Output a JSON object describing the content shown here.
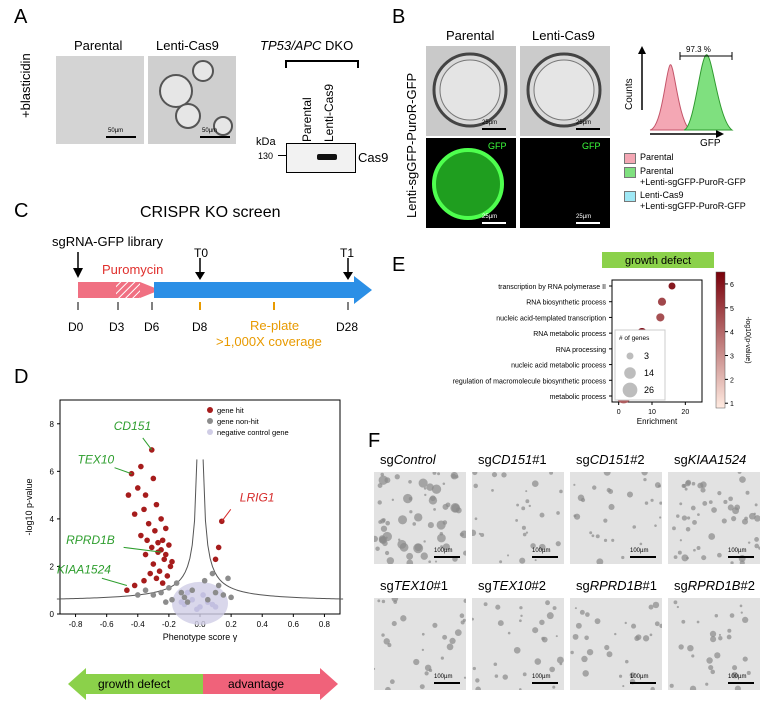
{
  "panels": {
    "a": "A",
    "b": "B",
    "c": "C",
    "d": "D",
    "e": "E",
    "f": "F"
  },
  "a": {
    "col1": "Parental",
    "col2": "Lenti-Cas9",
    "rowlabel": "+blasticidin",
    "scalebar1": "50µm",
    "scalebar2": "50µm",
    "dko_prefix": "TP53/APC",
    "dko_suffix": " DKO",
    "wb_lane1": "Parental",
    "wb_lane2": "Lenti-Cas9",
    "kda": "kDa",
    "marker": "130",
    "band": "Cas9"
  },
  "b": {
    "col1": "Parental",
    "col2": "Lenti-Cas9",
    "rowlabel": "Lenti-sgGFP-PuroR-GFP",
    "gfp1": "GFP",
    "gfp2": "GFP",
    "sb_top1": "25µm",
    "sb_top2": "25µm",
    "sb_bot1": "25µm",
    "sb_bot2": "25µm",
    "percent": "97.3 %",
    "ylabel": "Counts",
    "xlabel": "GFP",
    "legend": [
      {
        "color": "#f4a7b4",
        "line1": "Parental",
        "line2": ""
      },
      {
        "color": "#7fe07f",
        "line1": "Parental",
        "line2": "+Lenti-sgGFP-PuroR-GFP"
      },
      {
        "color": "#9fe8f5",
        "line1": "Lenti-Cas9",
        "line2": "+Lenti-sgGFP-PuroR-GFP"
      }
    ]
  },
  "c": {
    "title": "CRISPR KO screen",
    "library": "sgRNA-GFP library",
    "puromycin": "Puromycin",
    "t0": "T0",
    "t1": "T1",
    "replate1": "Re-plate",
    "replate2": ">1,000X coverage",
    "days": [
      "D0",
      "D3",
      "D6",
      "D8",
      "D28"
    ]
  },
  "d": {
    "xlabel": "Phenotype score γ",
    "ylabel": "-log10 p-value",
    "legend": [
      {
        "color": "#a61c1c",
        "label": "gene hit"
      },
      {
        "color": "#8c8c8c",
        "label": "gene non-hit"
      },
      {
        "color": "#d0cde6",
        "label": "negative control gene"
      }
    ],
    "genes": [
      {
        "name": "CD151",
        "color": "#2e9e2e"
      },
      {
        "name": "TEX10",
        "color": "#2e9e2e"
      },
      {
        "name": "RPRD1B",
        "color": "#2e9e2e"
      },
      {
        "name": "KIAA1524",
        "color": "#2e9e2e"
      },
      {
        "name": "LRIG1",
        "color": "#d62b2b"
      }
    ],
    "arrow_left": "growth defect",
    "arrow_right": "advantage"
  },
  "chart_data": [
    {
      "type": "scatter",
      "title": "",
      "xlabel": "Phenotype score γ",
      "ylabel": "-log10 p-value",
      "xlim": [
        -0.9,
        0.9
      ],
      "ylim": [
        0,
        9
      ],
      "xticks": [
        "-0.8",
        "-0.6",
        "-0.4",
        "-0.2",
        "0.0",
        "0.2",
        "0.4",
        "0.6",
        "0.8"
      ],
      "yticks": [
        "0",
        "2",
        "4",
        "6",
        "8"
      ],
      "series": [
        {
          "name": "gene hit",
          "points": [
            [
              -0.31,
              6.9
            ],
            [
              -0.44,
              5.9
            ],
            [
              -0.38,
              6.2
            ],
            [
              -0.3,
              5.7
            ],
            [
              -0.4,
              5.3
            ],
            [
              -0.46,
              5.0
            ],
            [
              -0.35,
              5.0
            ],
            [
              -0.28,
              4.6
            ],
            [
              -0.36,
              4.4
            ],
            [
              -0.42,
              4.2
            ],
            [
              -0.25,
              4.0
            ],
            [
              -0.33,
              3.8
            ],
            [
              -0.22,
              3.6
            ],
            [
              -0.29,
              3.5
            ],
            [
              -0.38,
              3.3
            ],
            [
              -0.24,
              3.1
            ],
            [
              -0.2,
              2.9
            ],
            [
              -0.31,
              2.8
            ],
            [
              -0.27,
              2.6
            ],
            [
              -0.35,
              2.5
            ],
            [
              -0.23,
              2.3
            ],
            [
              -0.3,
              2.1
            ],
            [
              -0.19,
              2.0
            ],
            [
              -0.26,
              1.8
            ],
            [
              -0.32,
              1.7
            ],
            [
              -0.21,
              1.6
            ],
            [
              -0.28,
              1.5
            ],
            [
              -0.36,
              1.4
            ],
            [
              -0.24,
              1.3
            ],
            [
              -0.42,
              1.2
            ],
            [
              -0.47,
              1.0
            ],
            [
              -0.22,
              2.5
            ],
            [
              -0.18,
              2.2
            ],
            [
              -0.25,
              2.7
            ],
            [
              -0.27,
              3.0
            ],
            [
              -0.34,
              3.1
            ],
            [
              0.14,
              3.9
            ],
            [
              0.12,
              2.8
            ],
            [
              0.1,
              2.3
            ]
          ]
        },
        {
          "name": "gene non-hit",
          "points": [
            [
              -0.15,
              1.3
            ],
            [
              -0.12,
              0.9
            ],
            [
              -0.1,
              0.7
            ],
            [
              -0.2,
              1.1
            ],
            [
              -0.25,
              0.9
            ],
            [
              -0.3,
              0.8
            ],
            [
              -0.18,
              0.6
            ],
            [
              -0.08,
              0.5
            ],
            [
              0.05,
              0.6
            ],
            [
              0.1,
              0.9
            ],
            [
              0.12,
              1.2
            ],
            [
              0.15,
              0.8
            ],
            [
              -0.05,
              1.0
            ],
            [
              0.03,
              1.4
            ],
            [
              0.08,
              1.7
            ],
            [
              -0.22,
              0.5
            ],
            [
              -0.35,
              1.0
            ],
            [
              -0.4,
              0.8
            ],
            [
              0.2,
              0.7
            ],
            [
              0.18,
              1.5
            ]
          ]
        },
        {
          "name": "negative control gene",
          "points": [
            [
              -0.1,
              0.4
            ],
            [
              0,
              0.3
            ],
            [
              0.05,
              0.5
            ],
            [
              -0.05,
              0.6
            ],
            [
              0.08,
              0.4
            ],
            [
              -0.12,
              0.5
            ],
            [
              0.02,
              0.8
            ],
            [
              -0.02,
              0.2
            ],
            [
              0.1,
              0.3
            ],
            [
              -0.08,
              0.9
            ]
          ]
        }
      ],
      "annotations": [
        {
          "text": "CD151",
          "x": -0.31,
          "y": 6.9
        },
        {
          "text": "TEX10",
          "x": -0.44,
          "y": 5.9
        },
        {
          "text": "RPRD1B",
          "x": -0.25,
          "y": 2.6
        },
        {
          "text": "KIAA1524",
          "x": -0.47,
          "y": 1.2
        },
        {
          "text": "LRIG1",
          "x": 0.14,
          "y": 3.9
        }
      ]
    },
    {
      "type": "scatter",
      "title": "growth defect",
      "xlabel": "Enrichment",
      "ylabel": "",
      "xlim": [
        -2,
        25
      ],
      "xticks": [
        "0",
        "10",
        "20"
      ],
      "categories": [
        "transcription by RNA polymerase II",
        "RNA biosynthetic process",
        "nucleic acid-templated transcription",
        "RNA metabolic process",
        "RNA processing",
        "nucleic acid metabolic process",
        "regulation of macromolecule biosynthetic process",
        "metabolic process"
      ],
      "series": [
        {
          "name": "",
          "points": [
            {
              "category": "transcription by RNA polymerase II",
              "x": 16,
              "genes": 3,
              "neglog10p": 5.5
            },
            {
              "category": "RNA biosynthetic process",
              "x": 13,
              "genes": 5,
              "neglog10p": 4.5
            },
            {
              "category": "nucleic acid-templated transcription",
              "x": 12.5,
              "genes": 5,
              "neglog10p": 4.3
            },
            {
              "category": "RNA metabolic process",
              "x": 7,
              "genes": 10,
              "neglog10p": 6.3
            },
            {
              "category": "RNA processing",
              "x": 7,
              "genes": 7,
              "neglog10p": 5.5
            },
            {
              "category": "nucleic acid metabolic process",
              "x": 6,
              "genes": 11,
              "neglog10p": 6.0
            },
            {
              "category": "regulation of macromolecule biosynthetic process",
              "x": 4,
              "genes": 14,
              "neglog10p": 3.2
            },
            {
              "category": "metabolic process",
              "x": 1.5,
              "genes": 26,
              "neglog10p": 4.0
            }
          ]
        }
      ],
      "size_legend": {
        "title": "# of genes",
        "values": [
          "3",
          "14",
          "26"
        ]
      },
      "colorbar": {
        "label": "-log10(p-value)",
        "ticks": [
          "1",
          "2",
          "3",
          "4",
          "5",
          "6"
        ]
      }
    }
  ],
  "f": {
    "labels": [
      {
        "pre": "sg",
        "it": "Control",
        "post": ""
      },
      {
        "pre": "sg",
        "it": "CD151",
        "post": "#1"
      },
      {
        "pre": "sg",
        "it": "CD151",
        "post": "#2"
      },
      {
        "pre": "sg",
        "it": "KIAA1524",
        "post": ""
      },
      {
        "pre": "sg",
        "it": "TEX10",
        "post": "#1"
      },
      {
        "pre": "sg",
        "it": "TEX10",
        "post": "#2"
      },
      {
        "pre": "sg",
        "it": "RPRD1B",
        "post": "#1"
      },
      {
        "pre": "sg",
        "it": "RPRD1B",
        "post": "#2"
      }
    ],
    "scalebar": "100µm"
  }
}
